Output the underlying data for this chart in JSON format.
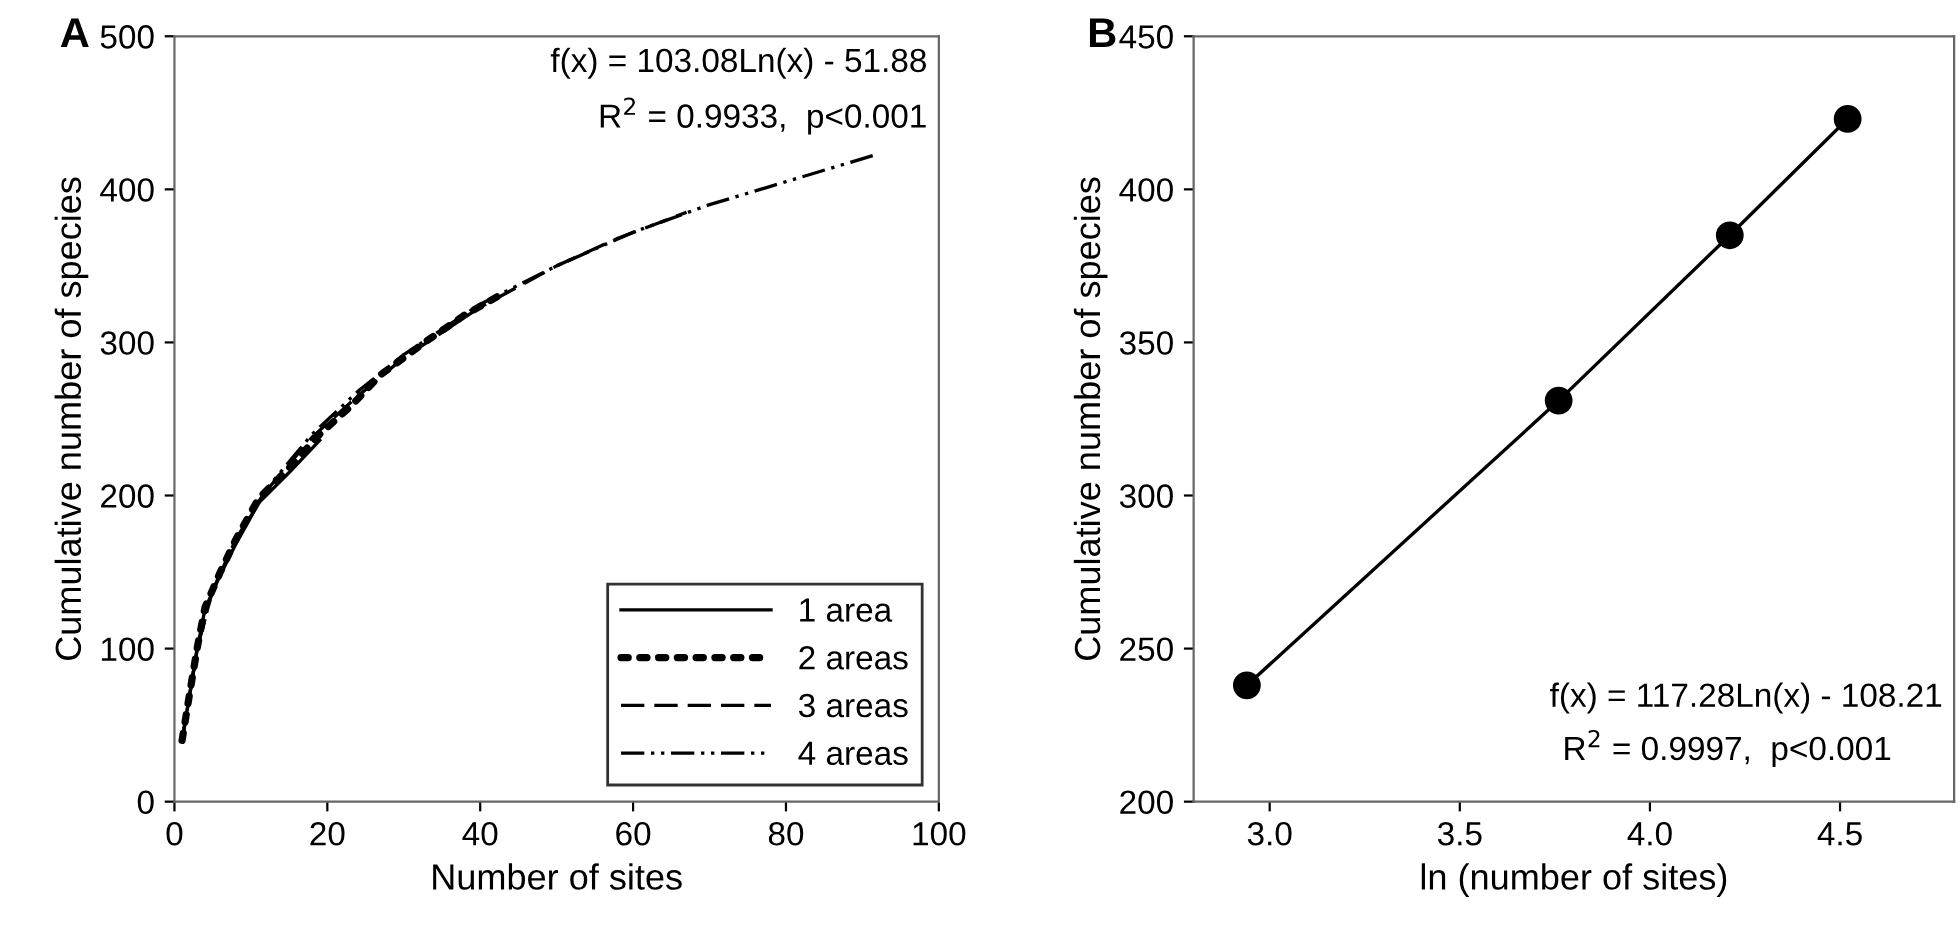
{
  "chart_data": [
    {
      "type": "line",
      "title": "A",
      "xlabel": "Number of sites",
      "ylabel": "Cumulative number of species",
      "xlim": [
        0,
        100
      ],
      "xticks": [
        0,
        20,
        40,
        60,
        80,
        100
      ],
      "ylim": [
        0,
        500
      ],
      "yticks": [
        0,
        100,
        200,
        300,
        400,
        500
      ],
      "legend": "bottom right",
      "grid": false,
      "marker": "none",
      "annotations": [
        "f(x) = 103.08Ln(x) - 51.88",
        "R$^{2}$ = 0.9933,  p<0.001"
      ],
      "series": [
        {
          "name": "1 area",
          "color": "#000000",
          "line_style": "solid",
          "x": [
            1,
            2,
            3,
            4,
            6,
            8,
            11,
            15,
            19
          ],
          "values": [
            40,
            70,
            100,
            126,
            148,
            168,
            195,
            215,
            236
          ]
        },
        {
          "name": "2 areas",
          "color": "#000000",
          "line_style": "dotted",
          "x": [
            1,
            2,
            3,
            4,
            6,
            8,
            11,
            15,
            19,
            23,
            27,
            33,
            38,
            43
          ],
          "values": [
            40,
            71,
            101,
            127,
            150,
            171,
            198,
            218,
            240,
            258,
            279,
            301,
            318,
            332
          ]
        },
        {
          "name": "3 areas",
          "color": "#000000",
          "line_style": "dashed",
          "x": [
            1,
            2,
            3,
            5,
            8,
            12,
            18,
            24,
            30,
            40,
            50,
            58,
            67
          ],
          "values": [
            40,
            70,
            101,
            138,
            170,
            203,
            238,
            265,
            290,
            323,
            350,
            368,
            385
          ]
        },
        {
          "name": "4 areas",
          "color": "#000000",
          "line_style": "dashdotdot",
          "x": [
            1,
            2,
            3,
            5,
            8,
            12,
            18,
            24,
            30,
            40,
            50,
            60,
            70,
            80,
            92
          ],
          "values": [
            40,
            70,
            101,
            138,
            171,
            204,
            240,
            268,
            292,
            325,
            350,
            372,
            390,
            405,
            423
          ]
        }
      ]
    },
    {
      "type": "line",
      "title": "B",
      "xlabel": "ln (number of sites)",
      "ylabel": "Cumulative number of species",
      "xlim": [
        2.8,
        4.8
      ],
      "xticks": [
        {
          "value": 3,
          "label": "3.0"
        },
        {
          "value": 3.5,
          "label": "3.5"
        },
        {
          "value": 4,
          "label": "4.0"
        },
        {
          "value": 4.5,
          "label": "4.5"
        }
      ],
      "ylim": [
        200,
        450
      ],
      "yticks": [
        200,
        250,
        300,
        350,
        400,
        450
      ],
      "grid": false,
      "marker": "circle",
      "annotations": [
        "f(x) = 117.28Ln(x) - 108.21",
        "R$^{2}$ = 0.9997,  p<0.001"
      ],
      "series": [
        {
          "color": "#000000",
          "line_style": "solid",
          "x": [
            2.94,
            3.76,
            4.21,
            4.52
          ],
          "values": [
            238,
            331,
            385,
            423
          ]
        }
      ]
    }
  ]
}
